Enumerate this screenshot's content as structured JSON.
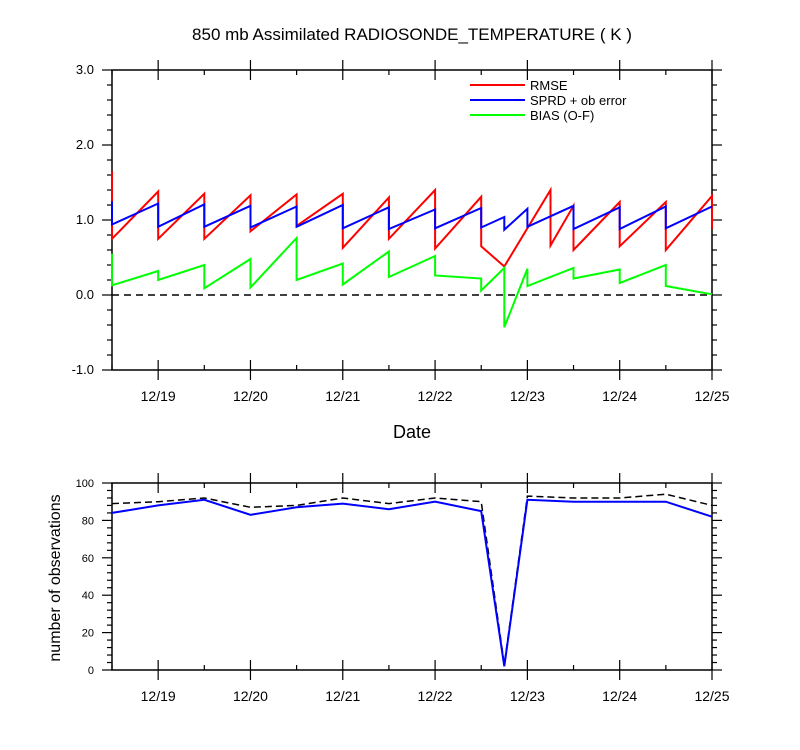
{
  "chart_data": [
    {
      "type": "line",
      "title": "850 mb Assimilated RADIOSONDE_TEMPERATURE ( K )",
      "xlabel": "Date",
      "ylabel": "",
      "ylim": [
        -1.0,
        3.0
      ],
      "yticks": [
        -1.0,
        0.0,
        1.0,
        2.0,
        3.0
      ],
      "ytick_labels": [
        "-1.0",
        "0.0",
        "1.0",
        "2.0",
        "3.0"
      ],
      "xlim": [
        "12/18 12:00",
        "12/25 00:00"
      ],
      "xticks": [
        {
          "x": "12/19 00:00",
          "label": "12/19"
        },
        {
          "x": "12/20 00:00",
          "label": "12/20"
        },
        {
          "x": "12/21 00:00",
          "label": "12/21"
        },
        {
          "x": "12/22 00:00",
          "label": "12/22"
        },
        {
          "x": "12/23 00:00",
          "label": "12/23"
        },
        {
          "x": "12/24 00:00",
          "label": "12/24"
        },
        {
          "x": "12/25 00:00",
          "label": "12/25"
        }
      ],
      "legend_position": "top-right",
      "reference_line": {
        "y": 0.0,
        "style": "dashed",
        "color": "#000000"
      },
      "series": [
        {
          "name": "RMSE",
          "color": "#ff0000",
          "points": [
            [
              "12/18 12:00",
              1.65
            ],
            [
              "12/18 12:00",
              0.75
            ],
            [
              "12/19 00:00",
              1.38
            ],
            [
              "12/19 00:00",
              0.75
            ],
            [
              "12/19 12:00",
              1.35
            ],
            [
              "12/19 12:00",
              0.75
            ],
            [
              "12/20 00:00",
              1.33
            ],
            [
              "12/20 00:00",
              0.85
            ],
            [
              "12/20 12:00",
              1.34
            ],
            [
              "12/20 12:00",
              0.92
            ],
            [
              "12/21 00:00",
              1.35
            ],
            [
              "12/21 00:00",
              0.63
            ],
            [
              "12/21 12:00",
              1.3
            ],
            [
              "12/21 12:00",
              0.75
            ],
            [
              "12/22 00:00",
              1.4
            ],
            [
              "12/22 00:00",
              0.62
            ],
            [
              "12/22 12:00",
              1.31
            ],
            [
              "12/22 12:00",
              0.65
            ],
            [
              "12/22 18:00",
              0.38
            ],
            [
              "12/23 06:00",
              1.4
            ],
            [
              "12/23 06:00",
              0.66
            ],
            [
              "12/23 12:00",
              1.19
            ],
            [
              "12/23 12:00",
              0.6
            ],
            [
              "12/24 00:00",
              1.24
            ],
            [
              "12/24 00:00",
              0.65
            ],
            [
              "12/24 12:00",
              1.24
            ],
            [
              "12/24 12:00",
              0.6
            ],
            [
              "12/25 00:00",
              1.32
            ],
            [
              "12/25 00:00",
              0.88
            ]
          ]
        },
        {
          "name": "SPRD + ob error",
          "color": "#0000ff",
          "points": [
            [
              "12/18 12:00",
              1.25
            ],
            [
              "12/18 12:00",
              0.94
            ],
            [
              "12/19 00:00",
              1.22
            ],
            [
              "12/19 00:00",
              0.91
            ],
            [
              "12/19 12:00",
              1.21
            ],
            [
              "12/19 12:00",
              0.91
            ],
            [
              "12/20 00:00",
              1.19
            ],
            [
              "12/20 00:00",
              0.9
            ],
            [
              "12/20 12:00",
              1.18
            ],
            [
              "12/20 12:00",
              0.91
            ],
            [
              "12/21 00:00",
              1.2
            ],
            [
              "12/21 00:00",
              0.89
            ],
            [
              "12/21 12:00",
              1.17
            ],
            [
              "12/21 12:00",
              0.88
            ],
            [
              "12/22 00:00",
              1.14
            ],
            [
              "12/22 00:00",
              0.89
            ],
            [
              "12/22 12:00",
              1.16
            ],
            [
              "12/22 12:00",
              0.9
            ],
            [
              "12/22 18:00",
              1.04
            ],
            [
              "12/22 18:00",
              0.87
            ],
            [
              "12/23 00:00",
              1.15
            ],
            [
              "12/23 00:00",
              0.91
            ],
            [
              "12/23 12:00",
              1.19
            ],
            [
              "12/23 12:00",
              0.88
            ],
            [
              "12/24 00:00",
              1.17
            ],
            [
              "12/24 00:00",
              0.88
            ],
            [
              "12/24 12:00",
              1.18
            ],
            [
              "12/24 12:00",
              0.89
            ],
            [
              "12/25 00:00",
              1.18
            ]
          ]
        },
        {
          "name": "BIAS (O-F)",
          "color": "#00ff00",
          "points": [
            [
              "12/18 12:00",
              0.55
            ],
            [
              "12/18 12:00",
              0.13
            ],
            [
              "12/19 00:00",
              0.32
            ],
            [
              "12/19 00:00",
              0.2
            ],
            [
              "12/19 12:00",
              0.4
            ],
            [
              "12/19 12:00",
              0.09
            ],
            [
              "12/20 00:00",
              0.48
            ],
            [
              "12/20 00:00",
              0.1
            ],
            [
              "12/20 12:00",
              0.76
            ],
            [
              "12/20 12:00",
              0.2
            ],
            [
              "12/21 00:00",
              0.42
            ],
            [
              "12/21 00:00",
              0.14
            ],
            [
              "12/21 12:00",
              0.58
            ],
            [
              "12/21 12:00",
              0.24
            ],
            [
              "12/22 00:00",
              0.52
            ],
            [
              "12/22 00:00",
              0.26
            ],
            [
              "12/22 12:00",
              0.22
            ],
            [
              "12/22 12:00",
              0.06
            ],
            [
              "12/22 18:00",
              0.36
            ],
            [
              "12/22 18:00",
              -0.43
            ],
            [
              "12/23 00:00",
              0.35
            ],
            [
              "12/23 00:00",
              0.12
            ],
            [
              "12/23 12:00",
              0.36
            ],
            [
              "12/23 12:00",
              0.22
            ],
            [
              "12/24 00:00",
              0.34
            ],
            [
              "12/24 00:00",
              0.16
            ],
            [
              "12/24 12:00",
              0.4
            ],
            [
              "12/24 12:00",
              0.12
            ],
            [
              "12/25 00:00",
              0.01
            ]
          ]
        }
      ]
    },
    {
      "type": "line",
      "title": "",
      "xlabel": "",
      "ylabel": "number of observations",
      "ylim": [
        0,
        100
      ],
      "yticks": [
        0,
        20,
        40,
        60,
        80,
        100
      ],
      "ytick_labels": [
        "0",
        "20",
        "40",
        "60",
        "80",
        "100"
      ],
      "xlim": [
        "12/18 12:00",
        "12/25 00:00"
      ],
      "xticks": [
        {
          "x": "12/19 00:00",
          "label": "12/19"
        },
        {
          "x": "12/20 00:00",
          "label": "12/20"
        },
        {
          "x": "12/21 00:00",
          "label": "12/21"
        },
        {
          "x": "12/22 00:00",
          "label": "12/22"
        },
        {
          "x": "12/23 00:00",
          "label": "12/23"
        },
        {
          "x": "12/24 00:00",
          "label": "12/24"
        },
        {
          "x": "12/25 00:00",
          "label": "12/25"
        }
      ],
      "series": [
        {
          "color": "#000000",
          "style": "dashed",
          "points": [
            [
              "12/18 12:00",
              89
            ],
            [
              "12/19 00:00",
              90
            ],
            [
              "12/19 12:00",
              92
            ],
            [
              "12/20 00:00",
              87
            ],
            [
              "12/20 12:00",
              88
            ],
            [
              "12/21 00:00",
              92
            ],
            [
              "12/21 12:00",
              89
            ],
            [
              "12/22 00:00",
              92
            ],
            [
              "12/22 12:00",
              90
            ],
            [
              "12/22 18:00",
              3
            ],
            [
              "12/23 00:00",
              93
            ],
            [
              "12/23 12:00",
              92
            ],
            [
              "12/24 00:00",
              92
            ],
            [
              "12/24 12:00",
              94
            ],
            [
              "12/25 00:00",
              88
            ]
          ]
        },
        {
          "color": "#0000ff",
          "style": "solid",
          "points": [
            [
              "12/18 12:00",
              84
            ],
            [
              "12/19 00:00",
              88
            ],
            [
              "12/19 12:00",
              91
            ],
            [
              "12/20 00:00",
              83
            ],
            [
              "12/20 12:00",
              87
            ],
            [
              "12/21 00:00",
              89
            ],
            [
              "12/21 12:00",
              86
            ],
            [
              "12/22 00:00",
              90
            ],
            [
              "12/22 12:00",
              85
            ],
            [
              "12/22 18:00",
              2
            ],
            [
              "12/23 00:00",
              91
            ],
            [
              "12/23 12:00",
              90
            ],
            [
              "12/24 00:00",
              90
            ],
            [
              "12/24 12:00",
              90
            ],
            [
              "12/25 00:00",
              82
            ]
          ]
        }
      ]
    }
  ]
}
